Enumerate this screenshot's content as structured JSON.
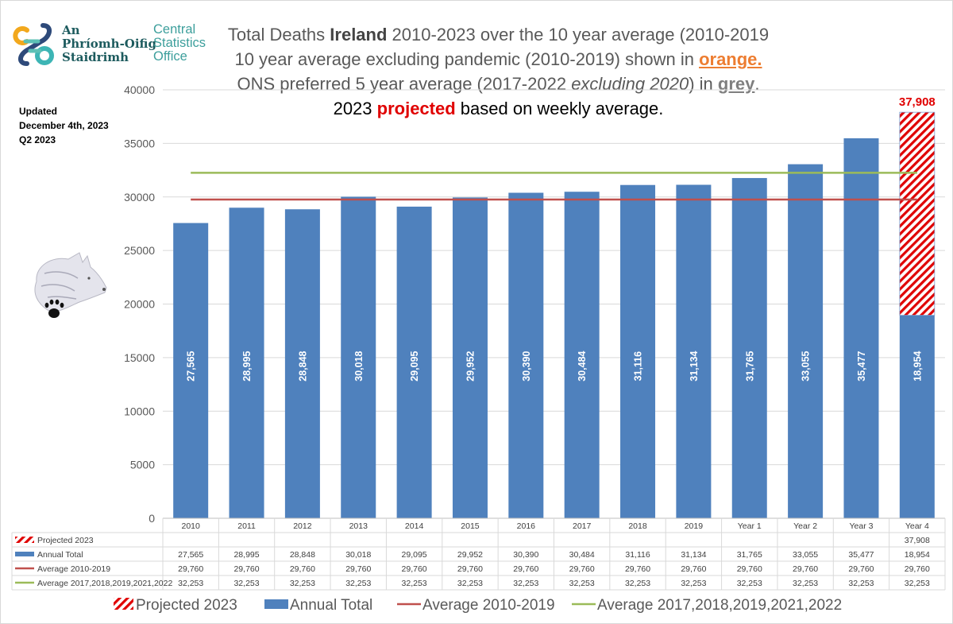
{
  "logo": {
    "irish_lines": [
      "An",
      "Phríomh-Oifig",
      "Staidrimh"
    ],
    "english_lines": [
      "Central",
      "Statistics",
      "Office"
    ]
  },
  "title": {
    "line1_a": "Total Deaths ",
    "line1_bold": "Ireland",
    "line1_b": " 2010-2023 over the 10 year average (2010-2019",
    "line2_a": "10 year average excluding pandemic (2010-2019) shown in ",
    "line2_orange": "orange.",
    "line3_a": "ONS preferred 5 year average (2017-2022 ",
    "line3_italic": "excluding 2020",
    "line3_b": ") in ",
    "line3_grey": "grey",
    "line3_c": ".",
    "line4_a": "2023 ",
    "line4_red": "projected",
    "line4_b": " based on weekly average."
  },
  "updated": [
    "Updated",
    "December 4th, 2023",
    "Q2 2023"
  ],
  "colors": {
    "annual": "#4f81bd",
    "avg_2010_2019": "#c0504d",
    "avg_5yr": "#9bbb59",
    "projected": "#e00000",
    "grid": "#d9d9d9",
    "text": "#595959"
  },
  "chart_data": {
    "type": "bar",
    "title": "Total Deaths Ireland 2010-2023 over the 10 year average (2010-2019)",
    "categories": [
      "2010",
      "2011",
      "2012",
      "2013",
      "2014",
      "2015",
      "2016",
      "2017",
      "2018",
      "2019",
      "Year 1",
      "Year 2",
      "Year 3",
      "Year 4"
    ],
    "ylim": [
      0,
      40000
    ],
    "yticks": [
      0,
      5000,
      10000,
      15000,
      20000,
      25000,
      30000,
      35000,
      40000
    ],
    "grid": true,
    "series": [
      {
        "name": "Projected 2023",
        "kind": "bar-hatched",
        "values": [
          null,
          null,
          null,
          null,
          null,
          null,
          null,
          null,
          null,
          null,
          null,
          null,
          null,
          37908
        ],
        "labels": [
          "",
          "",
          "",
          "",
          "",
          "",
          "",
          "",
          "",
          "",
          "",
          "",
          "",
          "37,908"
        ]
      },
      {
        "name": "Annual Total",
        "kind": "bar",
        "values": [
          27565,
          28995,
          28848,
          30018,
          29095,
          29952,
          30390,
          30484,
          31116,
          31134,
          31765,
          33055,
          35477,
          18954
        ],
        "labels": [
          "27,565",
          "28,995",
          "28,848",
          "30,018",
          "29,095",
          "29,952",
          "30,390",
          "30,484",
          "31,116",
          "31,134",
          "31,765",
          "33,055",
          "35,477",
          "18,954"
        ]
      },
      {
        "name": "Average 2010-2019",
        "kind": "line",
        "values": [
          29760,
          29760,
          29760,
          29760,
          29760,
          29760,
          29760,
          29760,
          29760,
          29760,
          29760,
          29760,
          29760,
          29760
        ],
        "labels": [
          "29,760",
          "29,760",
          "29,760",
          "29,760",
          "29,760",
          "29,760",
          "29,760",
          "29,760",
          "29,760",
          "29,760",
          "29,760",
          "29,760",
          "29,760",
          "29,760"
        ]
      },
      {
        "name": "Average 2017,2018,2019,2021,2022",
        "kind": "line",
        "values": [
          32253,
          32253,
          32253,
          32253,
          32253,
          32253,
          32253,
          32253,
          32253,
          32253,
          32253,
          32253,
          32253,
          32253
        ],
        "labels": [
          "32,253",
          "32,253",
          "32,253",
          "32,253",
          "32,253",
          "32,253",
          "32,253",
          "32,253",
          "32,253",
          "32,253",
          "32,253",
          "32,253",
          "32,253",
          "32,253"
        ]
      }
    ],
    "projected_top_label": "37,908",
    "legend": [
      "Projected 2023",
      "Annual Total",
      "Average 2010-2019",
      "Average 2017,2018,2019,2021,2022"
    ],
    "legend_position": "bottom",
    "data_table": true
  }
}
